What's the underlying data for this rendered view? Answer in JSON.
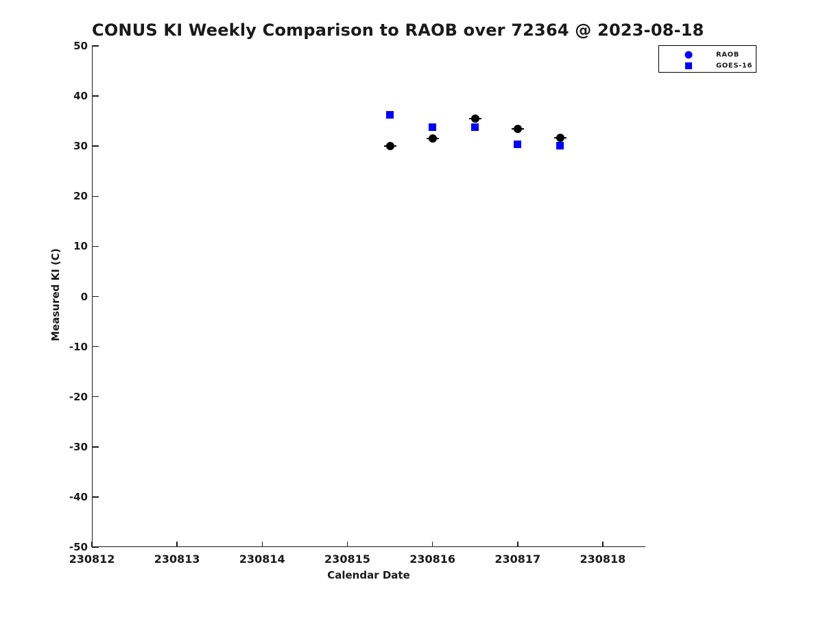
{
  "chart_data": {
    "type": "scatter",
    "title": "CONUS KI Weekly Comparison to RAOB over 72364 @ 2023-08-18",
    "xlabel": "Calendar Date",
    "ylabel": "Measured KI (C)",
    "xlim": [
      230812,
      230818.5
    ],
    "ylim": [
      -50,
      50
    ],
    "x_ticks": [
      230812,
      230813,
      230814,
      230815,
      230816,
      230817,
      230818
    ],
    "y_ticks": [
      50,
      40,
      30,
      20,
      10,
      0,
      -10,
      -20,
      -30,
      -40,
      -50
    ],
    "grid": false,
    "legend_position": "top-right",
    "series": [
      {
        "name": "GOES-16",
        "marker": "square",
        "color": "#0000FF",
        "legend_color": "#0000FF",
        "x": [
          230815.5,
          230816.0,
          230816.5,
          230817.0,
          230817.5
        ],
        "y": [
          36.3,
          33.8,
          33.8,
          30.4,
          30.1
        ]
      },
      {
        "name": "RAOB",
        "marker": "circle",
        "color": "#000000",
        "legend_color": "#0000FF",
        "x": [
          230815.5,
          230816.0,
          230816.5,
          230817.0,
          230817.5
        ],
        "y": [
          30.0,
          31.5,
          35.5,
          33.4,
          31.7
        ]
      }
    ],
    "legend_order": [
      "RAOB",
      "GOES-16"
    ]
  },
  "colors": {
    "axis": "#1a1a1a",
    "background": "#ffffff",
    "raob_marker": "#000000",
    "goes16_marker": "#0000FF",
    "legend_swatch": "#0000FF"
  }
}
